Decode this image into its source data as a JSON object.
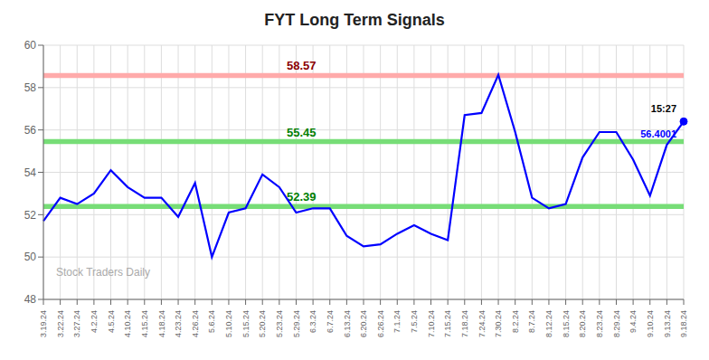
{
  "chart_data": {
    "type": "line",
    "title": "FYT Long Term Signals",
    "categories": [
      "3.19.24",
      "3.22.24",
      "3.27.24",
      "4.2.24",
      "4.5.24",
      "4.10.24",
      "4.15.24",
      "4.18.24",
      "4.23.24",
      "4.26.24",
      "5.6.24",
      "5.10.24",
      "5.15.24",
      "5.20.24",
      "5.23.24",
      "5.29.24",
      "6.3.24",
      "6.7.24",
      "6.13.24",
      "6.20.24",
      "6.26.24",
      "7.1.24",
      "7.5.24",
      "7.10.24",
      "7.15.24",
      "7.18.24",
      "7.24.24",
      "7.30.24",
      "8.2.24",
      "8.7.24",
      "8.12.24",
      "8.15.24",
      "8.20.24",
      "8.23.24",
      "8.29.24",
      "9.4.24",
      "9.10.24",
      "9.13.24",
      "9.18.24"
    ],
    "values": [
      51.7,
      52.8,
      52.5,
      53.0,
      54.1,
      53.3,
      52.8,
      52.8,
      51.9,
      53.5,
      50.0,
      52.1,
      52.3,
      53.9,
      53.3,
      52.1,
      52.3,
      52.3,
      51.0,
      50.5,
      50.6,
      51.1,
      51.5,
      51.1,
      50.8,
      56.7,
      56.8,
      58.6,
      55.9,
      52.8,
      52.3,
      52.5,
      54.7,
      55.9,
      55.9,
      54.6,
      52.9,
      55.3,
      56.4001
    ],
    "color": "blue",
    "ylim": [
      48,
      60
    ],
    "yticks": [
      48,
      50,
      52,
      54,
      56,
      58,
      60
    ],
    "grid": true,
    "hlines": [
      {
        "value": 58.57,
        "color": "#ffaaaa",
        "label_color": "darkred"
      },
      {
        "value": 55.45,
        "color": "#77dd77",
        "label_color": "green"
      },
      {
        "value": 52.39,
        "color": "#77dd77",
        "label_color": "green"
      }
    ],
    "annotations": [
      {
        "category": "9.18.24",
        "value": 56.4001,
        "marker_color": "blue",
        "texts": [
          {
            "text": "15:27",
            "color": "black"
          },
          {
            "text": "56.4001",
            "color": "blue"
          }
        ]
      }
    ],
    "watermark": {
      "text": "Stock Traders Daily",
      "color": "#aaaaaa"
    }
  }
}
